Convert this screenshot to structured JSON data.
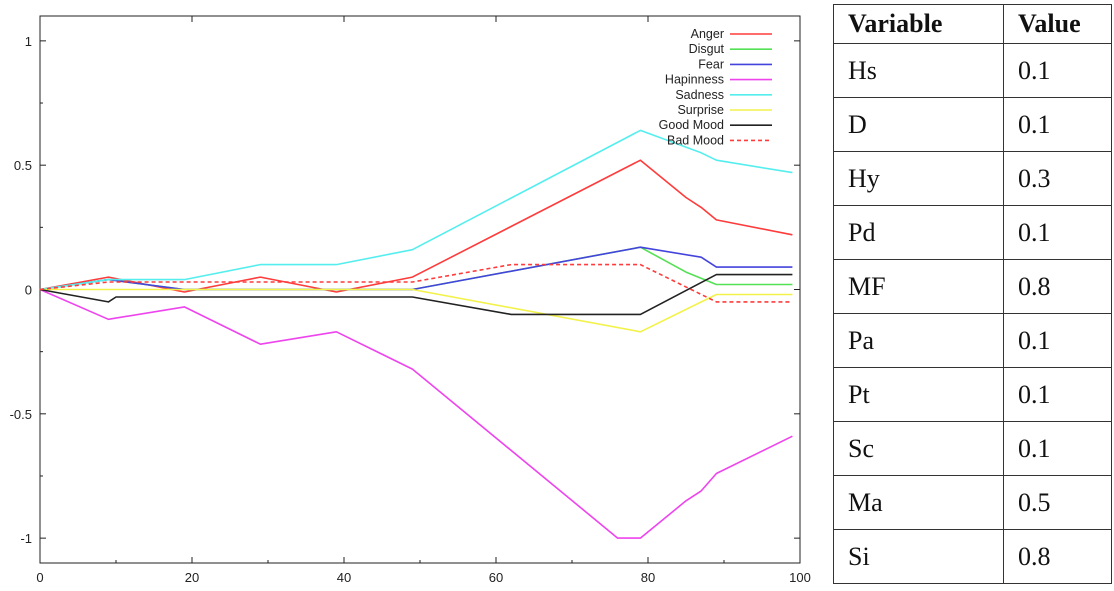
{
  "chart_data": {
    "type": "line",
    "title": "",
    "xlabel": "",
    "ylabel": "",
    "xlim": [
      0,
      100
    ],
    "ylim": [
      -1.1,
      1.1
    ],
    "xticks": [
      "0",
      "20",
      "40",
      "60",
      "80",
      "100"
    ],
    "yticks": [
      "1",
      "0.5",
      "0",
      "-0.5",
      "-1"
    ],
    "legend_position": "top-right",
    "series": [
      {
        "name": "Anger",
        "color": "#ff3b3b",
        "dash": false,
        "points": [
          [
            0,
            0
          ],
          [
            9,
            0.05
          ],
          [
            19,
            -0.01
          ],
          [
            29,
            0.05
          ],
          [
            39,
            -0.01
          ],
          [
            49,
            0.05
          ],
          [
            79,
            0.52
          ],
          [
            85,
            0.37
          ],
          [
            87,
            0.33
          ],
          [
            89,
            0.28
          ],
          [
            99,
            0.22
          ]
        ]
      },
      {
        "name": "Disgut",
        "color": "#55e055",
        "dash": false,
        "points": [
          [
            0,
            0
          ],
          [
            9,
            0.04
          ],
          [
            19,
            0.0
          ],
          [
            49,
            0.0
          ],
          [
            79,
            0.17
          ],
          [
            85,
            0.07
          ],
          [
            89,
            0.02
          ],
          [
            99,
            0.02
          ]
        ]
      },
      {
        "name": "Fear",
        "color": "#4444dd",
        "dash": false,
        "points": [
          [
            0,
            0
          ],
          [
            9,
            0.04
          ],
          [
            19,
            0.0
          ],
          [
            49,
            0.0
          ],
          [
            79,
            0.17
          ],
          [
            87,
            0.13
          ],
          [
            89,
            0.09
          ],
          [
            99,
            0.09
          ]
        ]
      },
      {
        "name": "Hapinness",
        "color": "#ee44ee",
        "dash": false,
        "points": [
          [
            0,
            0
          ],
          [
            9,
            -0.12
          ],
          [
            19,
            -0.07
          ],
          [
            29,
            -0.22
          ],
          [
            39,
            -0.17
          ],
          [
            49,
            -0.32
          ],
          [
            76,
            -1.0
          ],
          [
            79,
            -1.0
          ],
          [
            85,
            -0.85
          ],
          [
            87,
            -0.81
          ],
          [
            89,
            -0.74
          ],
          [
            99,
            -0.59
          ]
        ]
      },
      {
        "name": "Sadness",
        "color": "#55eeee",
        "dash": false,
        "points": [
          [
            0,
            0
          ],
          [
            9,
            0.04
          ],
          [
            19,
            0.04
          ],
          [
            29,
            0.1
          ],
          [
            39,
            0.1
          ],
          [
            49,
            0.16
          ],
          [
            79,
            0.64
          ],
          [
            87,
            0.55
          ],
          [
            89,
            0.52
          ],
          [
            99,
            0.47
          ]
        ]
      },
      {
        "name": "Surprise",
        "color": "#f2f24a",
        "dash": false,
        "points": [
          [
            0,
            0
          ],
          [
            9,
            0.0
          ],
          [
            49,
            0.0
          ],
          [
            79,
            -0.17
          ],
          [
            89,
            -0.02
          ],
          [
            99,
            -0.02
          ]
        ]
      },
      {
        "name": "Good Mood",
        "color": "#222222",
        "dash": false,
        "points": [
          [
            0,
            0
          ],
          [
            9,
            -0.05
          ],
          [
            10,
            -0.03
          ],
          [
            49,
            -0.03
          ],
          [
            62,
            -0.1
          ],
          [
            79,
            -0.1
          ],
          [
            89,
            0.06
          ],
          [
            99,
            0.06
          ]
        ]
      },
      {
        "name": "Bad Mood",
        "color": "#ff3b3b",
        "dash": true,
        "points": [
          [
            0,
            0
          ],
          [
            9,
            0.03
          ],
          [
            49,
            0.03
          ],
          [
            62,
            0.1
          ],
          [
            79,
            0.1
          ],
          [
            89,
            -0.05
          ],
          [
            99,
            -0.05
          ]
        ]
      }
    ]
  },
  "table": {
    "headers": [
      "Variable",
      "Value"
    ],
    "rows": [
      {
        "variable": "Hs",
        "value": "0.1"
      },
      {
        "variable": "D",
        "value": "0.1"
      },
      {
        "variable": "Hy",
        "value": "0.3"
      },
      {
        "variable": "Pd",
        "value": "0.1"
      },
      {
        "variable": "MF",
        "value": "0.8"
      },
      {
        "variable": "Pa",
        "value": "0.1"
      },
      {
        "variable": "Pt",
        "value": "0.1"
      },
      {
        "variable": "Sc",
        "value": "0.1"
      },
      {
        "variable": "Ma",
        "value": "0.5"
      },
      {
        "variable": "Si",
        "value": "0.8"
      }
    ]
  }
}
